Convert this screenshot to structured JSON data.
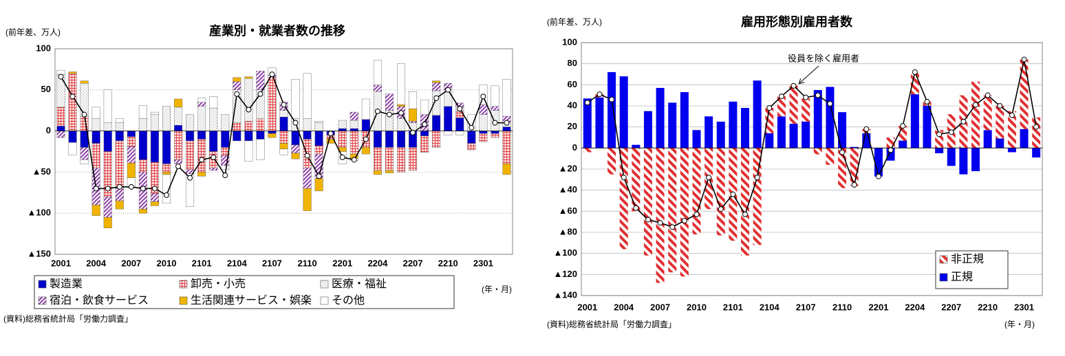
{
  "chart_data": [
    {
      "type": "bar",
      "stacked": true,
      "title": "産業別・就業者数の推移",
      "y_label": "(前年差、万人)",
      "x_unit": "(年・月)",
      "source": "(資料)総務省統計局「労働力調査」",
      "legend": "bottom",
      "grid": true,
      "categories": [
        "2001",
        null,
        null,
        "2004",
        null,
        null,
        "2007",
        null,
        null,
        "2010",
        null,
        null,
        "2101",
        null,
        null,
        "2104",
        null,
        null,
        "2107",
        null,
        null,
        "2110",
        null,
        null,
        "2201",
        null,
        null,
        "2204",
        null,
        null,
        "2207",
        null,
        null,
        "2210",
        null,
        null,
        "2301",
        null,
        null
      ],
      "series": [
        {
          "name": "製造業",
          "color": "#0000cc",
          "pattern": "none",
          "values": [
            6,
            -14,
            -20,
            -15,
            -25,
            -12,
            -7,
            -35,
            -38,
            -40,
            7,
            -12,
            -10,
            -25,
            -20,
            -12,
            -12,
            -10,
            -3,
            17,
            -17,
            -10,
            -18,
            -5,
            3,
            3,
            14,
            -20,
            -20,
            -20,
            -20,
            -6,
            19,
            30,
            16,
            -15,
            -3,
            -3,
            5
          ]
        },
        {
          "name": "卸売・小売",
          "color": "#e0393e",
          "pattern": "grid",
          "values": [
            23,
            70,
            18,
            -30,
            -55,
            -55,
            -12,
            -15,
            -38,
            -10,
            -35,
            -35,
            -40,
            -20,
            -10,
            10,
            12,
            15,
            65,
            -15,
            0,
            -35,
            -10,
            -5,
            -20,
            -28,
            -20,
            -28,
            -28,
            -30,
            -28,
            -20,
            -20,
            0,
            8,
            -8,
            -10,
            -5,
            -40
          ]
        },
        {
          "name": "医療・福祉",
          "color": "#888888",
          "pattern": "dots",
          "values": [
            40,
            0,
            40,
            15,
            10,
            10,
            0,
            15,
            20,
            30,
            22,
            20,
            30,
            28,
            20,
            40,
            52,
            35,
            0,
            8,
            15,
            15,
            10,
            0,
            10,
            10,
            0,
            48,
            25,
            15,
            10,
            0,
            30,
            20,
            5,
            0,
            20,
            25,
            5
          ]
        },
        {
          "name": "宿泊・飲食サービス",
          "color": "#8e3fa8",
          "pattern": "hatch",
          "values": [
            -8,
            0,
            -15,
            -45,
            -25,
            -18,
            -20,
            -45,
            -10,
            0,
            -5,
            -5,
            5,
            -3,
            -12,
            10,
            0,
            23,
            3,
            10,
            -10,
            -25,
            -30,
            0,
            0,
            10,
            0,
            8,
            20,
            15,
            2,
            20,
            10,
            8,
            5,
            0,
            12,
            5,
            8
          ]
        },
        {
          "name": "生活関連サービス・娯楽",
          "color": "#f0b400",
          "pattern": "none",
          "values": [
            0,
            2,
            3,
            -13,
            -13,
            -10,
            -18,
            -5,
            -5,
            -3,
            10,
            0,
            -5,
            0,
            0,
            5,
            2,
            0,
            -5,
            -7,
            -7,
            -27,
            -15,
            -5,
            -5,
            -5,
            -8,
            -5,
            -3,
            2,
            15,
            0,
            2,
            0,
            0,
            0,
            0,
            0,
            -13
          ]
        },
        {
          "name": "その他",
          "color": "#ffffff",
          "pattern": "none",
          "values": [
            5,
            -15,
            -5,
            14,
            40,
            5,
            -12,
            16,
            3,
            -35,
            0,
            -40,
            5,
            14,
            -5,
            0,
            -25,
            -25,
            9,
            -7,
            48,
            55,
            2,
            0,
            -15,
            -3,
            25,
            30,
            0,
            50,
            21,
            18,
            0,
            -5,
            -5,
            20,
            24,
            25,
            45
          ]
        }
      ],
      "line": {
        "color": "#000000",
        "values": [
          66,
          42,
          20,
          -70,
          -70,
          -68,
          -68,
          -70,
          -70,
          -78,
          -43,
          -57,
          -35,
          -32,
          -54,
          45,
          26,
          45,
          69,
          32,
          10,
          -30,
          -55,
          -3,
          -32,
          -35,
          -10,
          24,
          20,
          22,
          -2,
          8,
          40,
          50,
          27,
          4,
          42,
          10,
          10
        ]
      },
      "ylim": [
        -150,
        100
      ],
      "yticks": [
        {
          "value": -150,
          "label": "▲150"
        },
        {
          "value": -100,
          "label": "▲100"
        },
        {
          "value": -50,
          "label": "▲50"
        },
        0,
        50,
        100
      ]
    },
    {
      "type": "bar",
      "stacked": true,
      "title": "雇用形態別雇用者数",
      "y_label": "(前年差、万人)",
      "x_unit": "(年・月)",
      "source": "(資料)総務省統計局「労働力調査」",
      "legend": "lower right",
      "legend_order": "reverse",
      "grid": true,
      "categories": [
        "2001",
        null,
        null,
        "2004",
        null,
        null,
        "2007",
        null,
        null,
        "2010",
        null,
        null,
        "2101",
        null,
        null,
        "2104",
        null,
        null,
        "2107",
        null,
        null,
        "2110",
        null,
        null,
        "2201",
        null,
        null,
        "2204",
        null,
        null,
        "2207",
        null,
        null,
        "2210",
        null,
        null,
        "2301",
        null
      ],
      "series": [
        {
          "name": "正規",
          "color": "#0000ee",
          "pattern": "none",
          "values": [
            47,
            48,
            72,
            68,
            3,
            35,
            57,
            43,
            53,
            17,
            30,
            25,
            44,
            38,
            64,
            14,
            30,
            23,
            25,
            55,
            58,
            34,
            1,
            14,
            -27,
            -12,
            7,
            51,
            40,
            -5,
            -17,
            -25,
            -22,
            17,
            9,
            -4,
            18,
            -9
          ]
        },
        {
          "name": "非正規",
          "color": "#e03030",
          "pattern": "stripe",
          "values": [
            -4,
            3,
            -25,
            -96,
            -60,
            -102,
            -128,
            -118,
            -122,
            -82,
            -58,
            -83,
            -88,
            -102,
            -92,
            24,
            19,
            36,
            22,
            -6,
            -16,
            -38,
            -36,
            4,
            0,
            10,
            14,
            21,
            4,
            17,
            32,
            50,
            63,
            33,
            31,
            35,
            66,
            29
          ]
        }
      ],
      "line": {
        "label": "役員を除く雇用者",
        "color": "#000000",
        "values": [
          43,
          51,
          46,
          -28,
          -57,
          -68,
          -71,
          -75,
          -69,
          -63,
          -28,
          -58,
          -44,
          -63,
          -28,
          38,
          49,
          59,
          48,
          50,
          42,
          -4,
          -35,
          18,
          -27,
          -2,
          21,
          72,
          44,
          13,
          15,
          25,
          41,
          50,
          40,
          31,
          84,
          20
        ]
      },
      "ylim": [
        -140,
        100
      ],
      "yticks": [
        {
          "value": -140,
          "label": "▲140"
        },
        {
          "value": -120,
          "label": "▲120"
        },
        {
          "value": -100,
          "label": "▲100"
        },
        {
          "value": -80,
          "label": "▲80"
        },
        {
          "value": -60,
          "label": "▲60"
        },
        {
          "value": -40,
          "label": "▲40"
        },
        {
          "value": -20,
          "label": "▲20"
        },
        0,
        20,
        40,
        60,
        80,
        100
      ]
    }
  ]
}
